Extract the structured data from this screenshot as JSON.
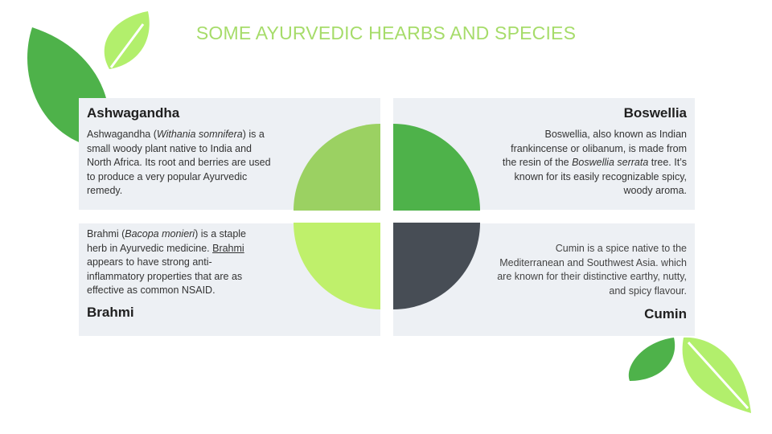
{
  "title": "SOME AYURVEDIC HEARBS AND SPECIES",
  "colors": {
    "title": "#a6dc6a",
    "card_bg": "#edf0f4",
    "quadrant_top_left": "#9bd162",
    "quadrant_top_right": "#4eb24a",
    "quadrant_bottom_left": "#bff06b",
    "quadrant_bottom_right": "#474d55",
    "leaf_dark": "#4eb24a",
    "leaf_light": "#b2ef6c"
  },
  "cards": {
    "ashwagandha": {
      "heading": "Ashwagandha",
      "text_before": "Ashwagandha (",
      "text_italic": "Withania somnifera",
      "text_after": ") is a small woody plant native to India and North Africa. Its root and berries are used to produce a very popular Ayurvedic remedy."
    },
    "boswellia": {
      "heading": "Boswellia",
      "text_before": "Boswellia, also known as Indian frankincense or olibanum, is made from the resin of the ",
      "text_italic": "Boswellia serrata",
      "text_after": " tree. It’s known for its easily recognizable spicy, woody aroma."
    },
    "brahmi": {
      "heading": "Brahmi",
      "text_before": "Brahmi (",
      "text_italic": "Bacopa monieri",
      "text_middle": ") is a staple herb in Ayurvedic medicine. ",
      "text_underlined": "Brahmi",
      "text_after": " appears to have strong anti-inflammatory properties that are as effective as common NSAID."
    },
    "cumin": {
      "heading": "Cumin",
      "text": "Cumin is a spice native to the Mediterranean and Southwest Asia. which are known for their distinctive earthy, nutty, and spicy flavour."
    }
  }
}
